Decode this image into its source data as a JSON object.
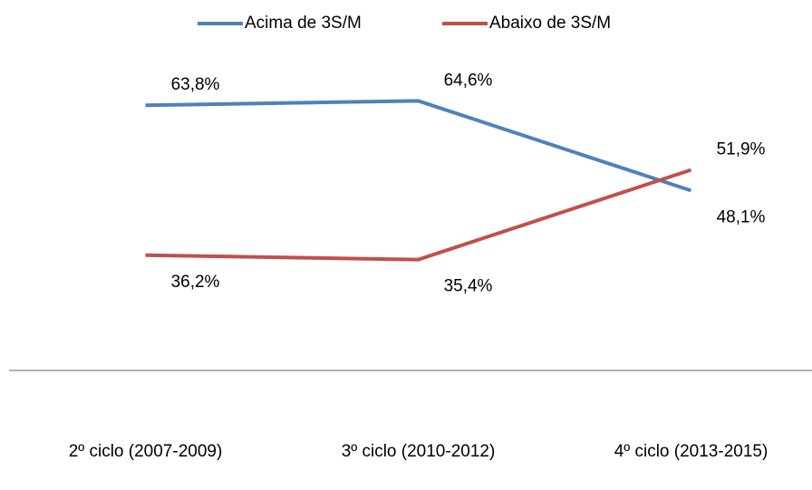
{
  "chart_data": {
    "type": "line",
    "categories": [
      "2º ciclo (2007-2009)",
      "3º ciclo (2010-2012)",
      "4º ciclo (2013-2015)"
    ],
    "series": [
      {
        "name": "Acima de 3S/M",
        "color": "#4f81bd",
        "values": [
          63.8,
          64.6,
          48.1
        ],
        "value_labels": [
          "63,8%",
          "64,6%",
          "48,1%"
        ]
      },
      {
        "name": "Abaixo de 3S/M",
        "color": "#c0504d",
        "values": [
          36.2,
          35.4,
          51.9
        ],
        "value_labels": [
          "36,2%",
          "35,4%",
          "51,9%"
        ]
      }
    ],
    "ylim": [
      15,
      75
    ],
    "legend": "top"
  }
}
